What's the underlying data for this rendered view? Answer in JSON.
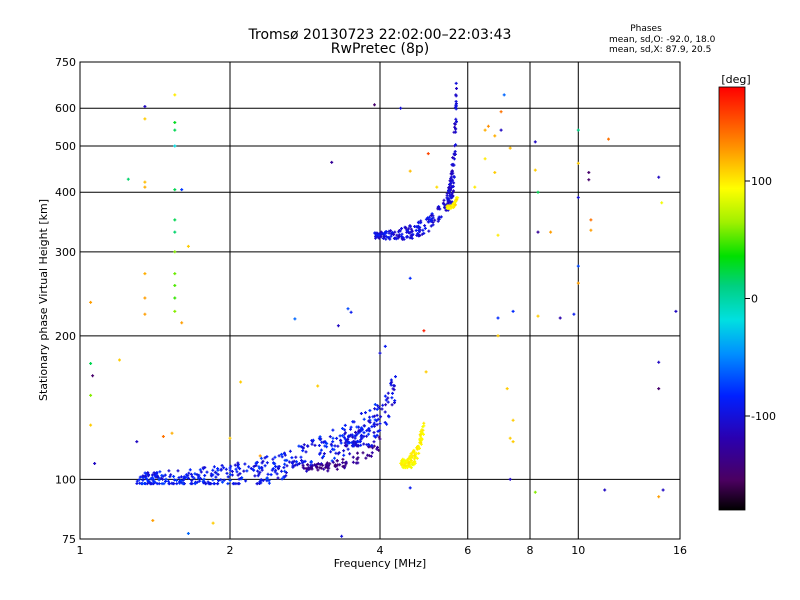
{
  "chart_data": {
    "type": "scatter",
    "title": "Tromsø 20130723 22:02:00–22:03:43",
    "subtitle": "RwPretec (8p)",
    "xlabel": "Frequency [MHz]",
    "ylabel": "Stationary phase Virtual Height [km]",
    "x_scale": "log",
    "y_scale": "log",
    "xlim": [
      1,
      16
    ],
    "ylim": [
      75,
      750
    ],
    "x_ticks": [
      1,
      2,
      4,
      6,
      8,
      10,
      16
    ],
    "y_ticks": [
      75,
      100,
      200,
      300,
      400,
      500,
      600,
      750
    ],
    "grid": true,
    "stats": {
      "heading": "Phases",
      "line1": "mean, sd,O: -92.0, 18.0",
      "line2": "mean, sd,X:  87.9, 20.5"
    },
    "colorbar": {
      "label": "[deg]",
      "ticks": [
        100,
        0,
        -100
      ],
      "range": [
        -180,
        180
      ]
    },
    "traces": [
      {
        "x_range": [
          1.3,
          4.0
        ],
        "y_range": [
          100,
          135
        ],
        "phase": -90,
        "spread": 18,
        "count": 420,
        "seed": 11
      },
      {
        "x_range": [
          2.8,
          4.0
        ],
        "y_range": [
          106,
          120
        ],
        "phase": -135,
        "spread": 12,
        "count": 80,
        "seed": 12
      },
      {
        "x_range": [
          3.4,
          4.3
        ],
        "y_range": [
          120,
          160
        ],
        "phase": -100,
        "spread": 15,
        "count": 90,
        "seed": 13
      },
      {
        "x_range": [
          4.4,
          4.9
        ],
        "y_range": [
          108,
          128
        ],
        "phase": 95,
        "spread": 8,
        "count": 110,
        "seed": 14
      },
      {
        "x_range": [
          3.9,
          5.5
        ],
        "y_range": [
          325,
          380
        ],
        "phase": -100,
        "spread": 15,
        "count": 160,
        "seed": 15
      },
      {
        "x_range": [
          5.45,
          5.7
        ],
        "y_range": [
          380,
          640
        ],
        "phase": -105,
        "spread": 12,
        "count": 120,
        "seed": 16
      },
      {
        "x_range": [
          5.45,
          5.75
        ],
        "y_range": [
          372,
          395
        ],
        "phase": 100,
        "spread": 8,
        "count": 45,
        "seed": 17
      }
    ],
    "isolated_points": [
      {
        "x": 1.35,
        "y": 605,
        "phase": -110
      },
      {
        "x": 1.55,
        "y": 640,
        "phase": 100
      },
      {
        "x": 1.35,
        "y": 570,
        "phase": 110
      },
      {
        "x": 1.55,
        "y": 560,
        "phase": 30
      },
      {
        "x": 1.55,
        "y": 540,
        "phase": 20
      },
      {
        "x": 1.55,
        "y": 500,
        "phase": -20
      },
      {
        "x": 1.35,
        "y": 420,
        "phase": 115
      },
      {
        "x": 1.35,
        "y": 410,
        "phase": 120
      },
      {
        "x": 1.55,
        "y": 405,
        "phase": 20
      },
      {
        "x": 1.55,
        "y": 350,
        "phase": 20
      },
      {
        "x": 1.55,
        "y": 330,
        "phase": 15
      },
      {
        "x": 1.55,
        "y": 300,
        "phase": 60
      },
      {
        "x": 1.55,
        "y": 270,
        "phase": 55
      },
      {
        "x": 1.55,
        "y": 255,
        "phase": 50
      },
      {
        "x": 1.55,
        "y": 240,
        "phase": 45
      },
      {
        "x": 1.55,
        "y": 225,
        "phase": 60
      },
      {
        "x": 1.35,
        "y": 270,
        "phase": 120
      },
      {
        "x": 1.35,
        "y": 240,
        "phase": 125
      },
      {
        "x": 1.35,
        "y": 222,
        "phase": 125
      },
      {
        "x": 1.6,
        "y": 213,
        "phase": 125
      },
      {
        "x": 1.25,
        "y": 426,
        "phase": 15
      },
      {
        "x": 1.6,
        "y": 405,
        "phase": -75
      },
      {
        "x": 1.05,
        "y": 235,
        "phase": 125
      },
      {
        "x": 1.05,
        "y": 175,
        "phase": 20
      },
      {
        "x": 1.06,
        "y": 165,
        "phase": -150
      },
      {
        "x": 1.2,
        "y": 178,
        "phase": 110
      },
      {
        "x": 1.05,
        "y": 150,
        "phase": 60
      },
      {
        "x": 1.07,
        "y": 108,
        "phase": -110
      },
      {
        "x": 1.3,
        "y": 120,
        "phase": -110
      },
      {
        "x": 1.47,
        "y": 123,
        "phase": 140
      },
      {
        "x": 1.53,
        "y": 125,
        "phase": 120
      },
      {
        "x": 1.65,
        "y": 308,
        "phase": 110
      },
      {
        "x": 1.05,
        "y": 130,
        "phase": 110
      },
      {
        "x": 1.4,
        "y": 82,
        "phase": 125
      },
      {
        "x": 1.65,
        "y": 77,
        "phase": -60
      },
      {
        "x": 1.85,
        "y": 81,
        "phase": 110
      },
      {
        "x": 2.1,
        "y": 160,
        "phase": 110
      },
      {
        "x": 2.0,
        "y": 122,
        "phase": 110
      },
      {
        "x": 2.3,
        "y": 112,
        "phase": 125
      },
      {
        "x": 2.7,
        "y": 217,
        "phase": -60
      },
      {
        "x": 3.0,
        "y": 157,
        "phase": 110
      },
      {
        "x": 3.2,
        "y": 462,
        "phase": -130
      },
      {
        "x": 3.3,
        "y": 210,
        "phase": -110
      },
      {
        "x": 3.45,
        "y": 228,
        "phase": -70
      },
      {
        "x": 3.5,
        "y": 224,
        "phase": -90
      },
      {
        "x": 3.35,
        "y": 76,
        "phase": -100
      },
      {
        "x": 3.9,
        "y": 610,
        "phase": -150
      },
      {
        "x": 4.4,
        "y": 600,
        "phase": -100
      },
      {
        "x": 4.0,
        "y": 184,
        "phase": -100
      },
      {
        "x": 4.1,
        "y": 190,
        "phase": -90
      },
      {
        "x": 4.6,
        "y": 264,
        "phase": -80
      },
      {
        "x": 4.6,
        "y": 96,
        "phase": -90
      },
      {
        "x": 4.9,
        "y": 205,
        "phase": 170
      },
      {
        "x": 4.95,
        "y": 168,
        "phase": 110
      },
      {
        "x": 5.0,
        "y": 482,
        "phase": 155
      },
      {
        "x": 4.6,
        "y": 443,
        "phase": 115
      },
      {
        "x": 5.2,
        "y": 410,
        "phase": 105
      },
      {
        "x": 6.2,
        "y": 410,
        "phase": 100
      },
      {
        "x": 6.5,
        "y": 470,
        "phase": 100
      },
      {
        "x": 6.5,
        "y": 540,
        "phase": 120
      },
      {
        "x": 6.6,
        "y": 550,
        "phase": 130
      },
      {
        "x": 6.8,
        "y": 525,
        "phase": 120
      },
      {
        "x": 7.0,
        "y": 590,
        "phase": 140
      },
      {
        "x": 7.1,
        "y": 640,
        "phase": -60
      },
      {
        "x": 7.0,
        "y": 540,
        "phase": -110
      },
      {
        "x": 7.3,
        "y": 495,
        "phase": 115
      },
      {
        "x": 6.8,
        "y": 440,
        "phase": 110
      },
      {
        "x": 6.9,
        "y": 325,
        "phase": 100
      },
      {
        "x": 6.9,
        "y": 218,
        "phase": -80
      },
      {
        "x": 7.4,
        "y": 225,
        "phase": -80
      },
      {
        "x": 6.9,
        "y": 200,
        "phase": 110
      },
      {
        "x": 7.2,
        "y": 155,
        "phase": 110
      },
      {
        "x": 7.4,
        "y": 133,
        "phase": 110
      },
      {
        "x": 7.3,
        "y": 122,
        "phase": 110
      },
      {
        "x": 7.4,
        "y": 120,
        "phase": 110
      },
      {
        "x": 7.3,
        "y": 100,
        "phase": -110
      },
      {
        "x": 8.2,
        "y": 510,
        "phase": -110
      },
      {
        "x": 8.2,
        "y": 445,
        "phase": 110
      },
      {
        "x": 8.3,
        "y": 400,
        "phase": 20
      },
      {
        "x": 8.3,
        "y": 330,
        "phase": -130
      },
      {
        "x": 8.3,
        "y": 220,
        "phase": 110
      },
      {
        "x": 8.2,
        "y": 94,
        "phase": 60
      },
      {
        "x": 8.8,
        "y": 330,
        "phase": 125
      },
      {
        "x": 9.2,
        "y": 218,
        "phase": -120
      },
      {
        "x": 9.8,
        "y": 222,
        "phase": -90
      },
      {
        "x": 10.0,
        "y": 540,
        "phase": 10
      },
      {
        "x": 10.0,
        "y": 460,
        "phase": 110
      },
      {
        "x": 10.0,
        "y": 390,
        "phase": -100
      },
      {
        "x": 10.0,
        "y": 280,
        "phase": -70
      },
      {
        "x": 10.0,
        "y": 258,
        "phase": 125
      },
      {
        "x": 10.5,
        "y": 440,
        "phase": -150
      },
      {
        "x": 10.5,
        "y": 425,
        "phase": -150
      },
      {
        "x": 10.6,
        "y": 350,
        "phase": 140
      },
      {
        "x": 10.6,
        "y": 333,
        "phase": 125
      },
      {
        "x": 11.5,
        "y": 517,
        "phase": 140
      },
      {
        "x": 11.3,
        "y": 95,
        "phase": -110
      },
      {
        "x": 14.5,
        "y": 430,
        "phase": -110
      },
      {
        "x": 14.7,
        "y": 380,
        "phase": 90
      },
      {
        "x": 14.5,
        "y": 176,
        "phase": -110
      },
      {
        "x": 14.5,
        "y": 155,
        "phase": -150
      },
      {
        "x": 14.8,
        "y": 95,
        "phase": -110
      },
      {
        "x": 14.5,
        "y": 92,
        "phase": 125
      },
      {
        "x": 15.7,
        "y": 225,
        "phase": -110
      }
    ]
  }
}
